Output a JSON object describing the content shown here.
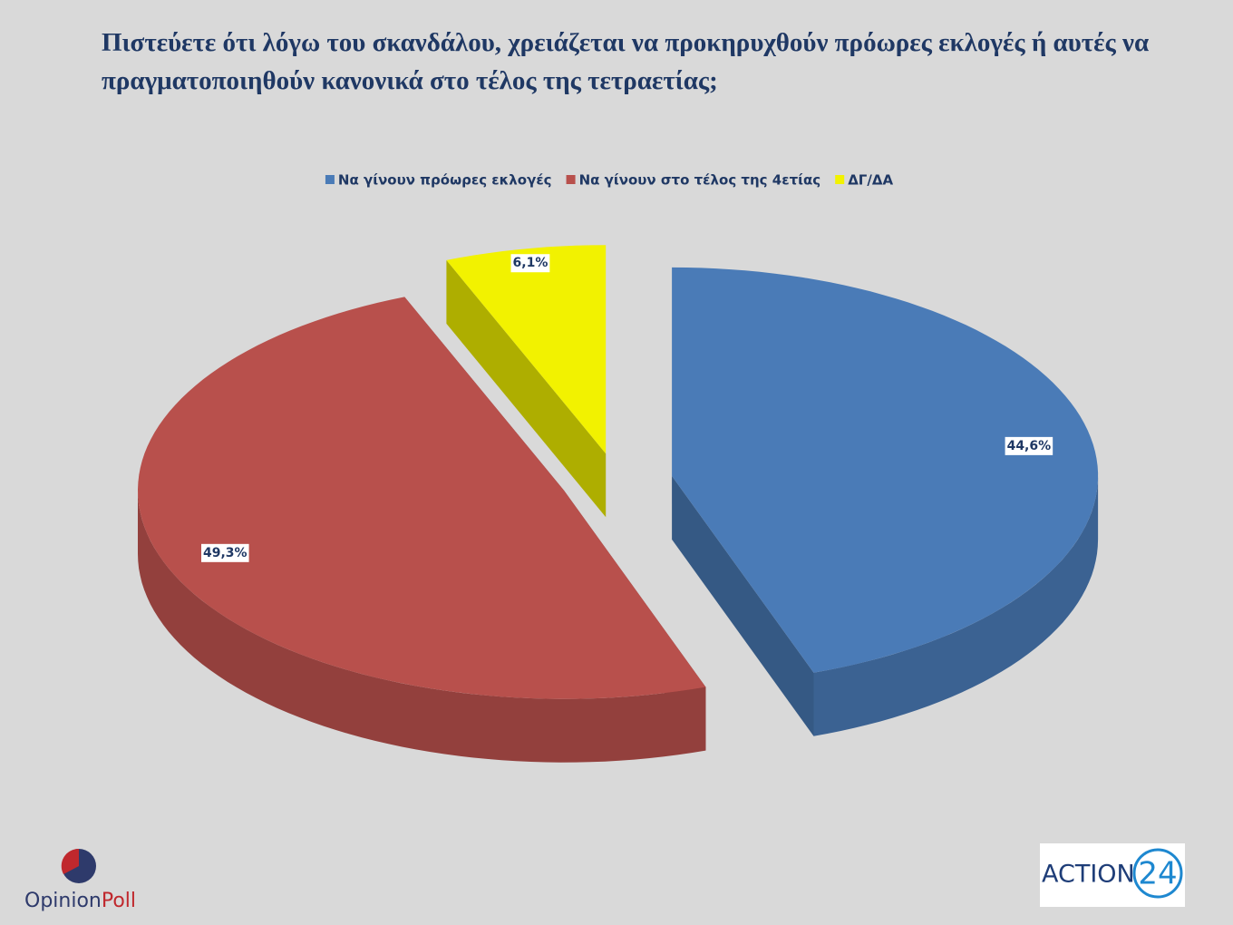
{
  "chart_data": {
    "type": "pie",
    "title": "Πιστεύετε ότι λόγω του σκανδάλου, χρειάζεται να προκηρυχθούν πρόωρες εκλογές ή αυτές να πραγματοποιηθούν κανονικά στο τέλος της τετραετίας;",
    "categories": [
      "Να γίνουν πρόωρες εκλογές",
      "Να γίνουν στο τέλος της 4ετίας",
      "ΔΓ/ΔΑ"
    ],
    "values": [
      44.6,
      49.3,
      6.1
    ],
    "value_labels": [
      "44,6%",
      "49,3%",
      "6,1%"
    ],
    "colors": [
      "#4a7bb7",
      "#b8504c",
      "#f2f200"
    ],
    "legend": "top"
  },
  "logos": {
    "opinion_poll": [
      "Opinion",
      "Poll"
    ],
    "action24": [
      "ACTION",
      "24"
    ]
  }
}
